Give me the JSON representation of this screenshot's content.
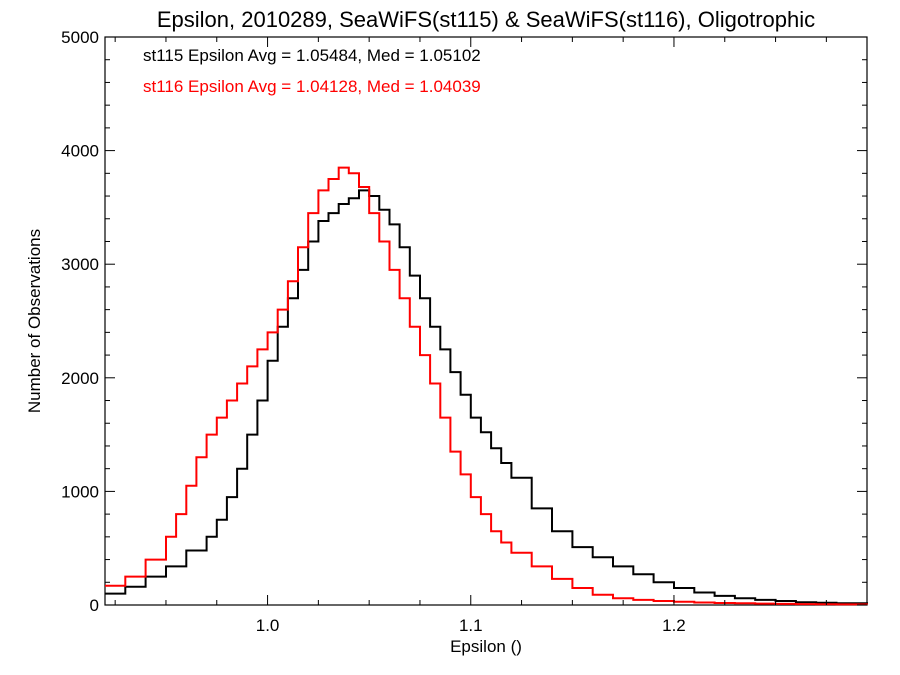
{
  "chart_data": {
    "type": "line",
    "style": "step-histogram",
    "title": "Epsilon, 2010289, SeaWiFS(st115) & SeaWiFS(st116), Oligotrophic",
    "xlabel": "Epsilon ()",
    "ylabel": "Number of Observations",
    "xlim": [
      0.92,
      1.295
    ],
    "ylim": [
      0,
      5000
    ],
    "x_ticks": [
      1.0,
      1.1,
      1.2
    ],
    "x_tick_labels": [
      "1.0",
      "1.1",
      "1.2"
    ],
    "y_ticks": [
      0,
      1000,
      2000,
      3000,
      4000,
      5000
    ],
    "y_tick_labels": [
      "0",
      "1000",
      "2000",
      "3000",
      "4000",
      "5000"
    ],
    "grid": false,
    "annotations": [
      {
        "text": "st115 Epsilon Avg = 1.05484, Med = 1.05102",
        "color": "#000000"
      },
      {
        "text": "st116 Epsilon Avg = 1.04128, Med = 1.04039",
        "color": "#ff0000"
      }
    ],
    "series": [
      {
        "color": "#000000",
        "x": [
          0.92,
          0.93,
          0.94,
          0.95,
          0.96,
          0.97,
          0.975,
          0.98,
          0.985,
          0.99,
          0.995,
          1.0,
          1.005,
          1.01,
          1.015,
          1.02,
          1.025,
          1.03,
          1.035,
          1.04,
          1.045,
          1.05,
          1.055,
          1.06,
          1.065,
          1.07,
          1.075,
          1.08,
          1.085,
          1.09,
          1.095,
          1.1,
          1.105,
          1.11,
          1.115,
          1.12,
          1.13,
          1.14,
          1.15,
          1.16,
          1.17,
          1.18,
          1.19,
          1.2,
          1.21,
          1.22,
          1.23,
          1.24,
          1.25,
          1.26,
          1.27,
          1.28,
          1.295
        ],
        "y": [
          100,
          160,
          250,
          340,
          480,
          600,
          750,
          950,
          1200,
          1500,
          1800,
          2150,
          2450,
          2700,
          2950,
          3200,
          3380,
          3450,
          3530,
          3580,
          3650,
          3600,
          3480,
          3350,
          3150,
          2900,
          2700,
          2450,
          2250,
          2050,
          1850,
          1650,
          1520,
          1380,
          1250,
          1120,
          850,
          650,
          510,
          420,
          340,
          270,
          200,
          150,
          110,
          80,
          60,
          45,
          35,
          25,
          20,
          15,
          10
        ]
      },
      {
        "color": "#ff0000",
        "x": [
          0.92,
          0.93,
          0.94,
          0.95,
          0.955,
          0.96,
          0.965,
          0.97,
          0.975,
          0.98,
          0.985,
          0.99,
          0.995,
          1.0,
          1.005,
          1.01,
          1.015,
          1.02,
          1.025,
          1.03,
          1.035,
          1.04,
          1.045,
          1.05,
          1.055,
          1.06,
          1.065,
          1.07,
          1.075,
          1.08,
          1.085,
          1.09,
          1.095,
          1.1,
          1.105,
          1.11,
          1.115,
          1.12,
          1.13,
          1.14,
          1.15,
          1.16,
          1.17,
          1.18,
          1.19,
          1.2,
          1.21,
          1.22,
          1.23,
          1.24,
          1.25,
          1.26,
          1.27,
          1.28,
          1.295
        ],
        "y": [
          170,
          250,
          400,
          600,
          800,
          1050,
          1300,
          1500,
          1650,
          1800,
          1950,
          2100,
          2250,
          2400,
          2600,
          2850,
          3150,
          3450,
          3650,
          3750,
          3850,
          3800,
          3680,
          3450,
          3200,
          2950,
          2700,
          2450,
          2200,
          1950,
          1650,
          1350,
          1150,
          950,
          800,
          650,
          550,
          460,
          340,
          230,
          150,
          90,
          60,
          45,
          35,
          28,
          22,
          18,
          15,
          12,
          10,
          8,
          6,
          5,
          4
        ]
      }
    ]
  }
}
